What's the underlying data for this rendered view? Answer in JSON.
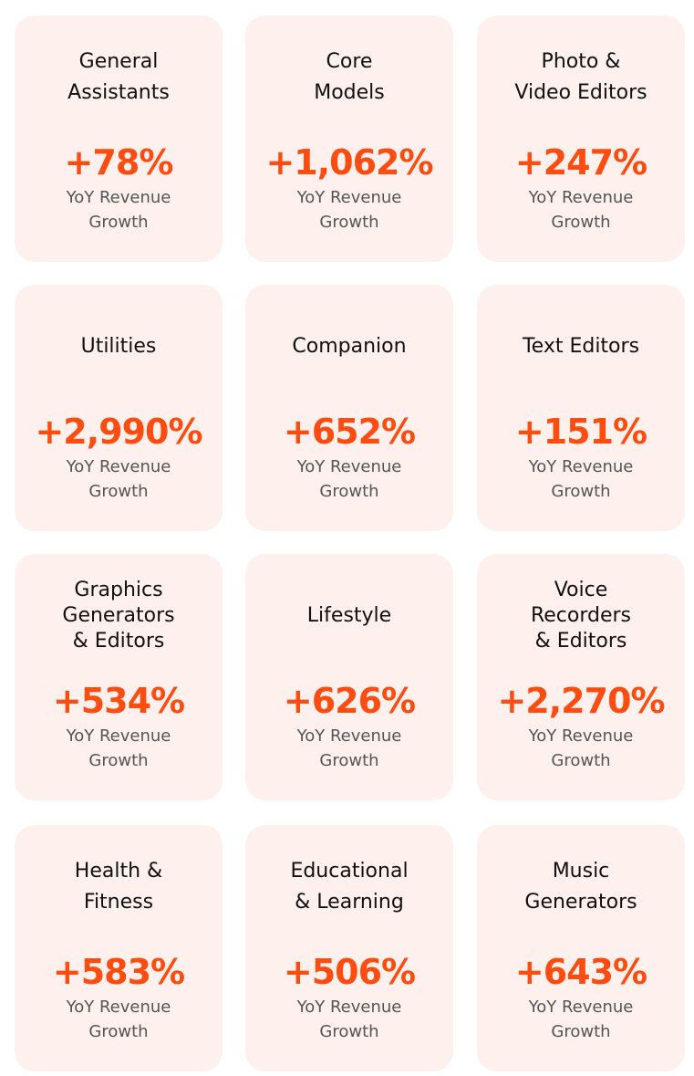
{
  "cards": [
    {
      "title": [
        "General",
        "Assistants"
      ],
      "value": "+78%",
      "label": [
        "YoY Revenue",
        "Growth"
      ]
    },
    {
      "title": [
        "Core",
        "Models"
      ],
      "value": "+1,062%",
      "label": [
        "YoY Revenue",
        "Growth"
      ]
    },
    {
      "title": [
        "Photo &",
        "Video Editors"
      ],
      "value": "+247%",
      "label": [
        "YoY Revenue",
        "Growth"
      ]
    },
    {
      "title": [
        "Utilities"
      ],
      "value": "+2,990%",
      "label": [
        "YoY Revenue",
        "Growth"
      ]
    },
    {
      "title": [
        "Companion"
      ],
      "value": "+652%",
      "label": [
        "YoY Revenue",
        "Growth"
      ]
    },
    {
      "title": [
        "Text Editors"
      ],
      "value": "+151%",
      "label": [
        "YoY Revenue",
        "Growth"
      ]
    },
    {
      "title": [
        "Graphics",
        "Generators",
        "& Editors"
      ],
      "value": "+534%",
      "label": [
        "YoY Revenue",
        "Growth"
      ]
    },
    {
      "title": [
        "Lifestyle"
      ],
      "value": "+626%",
      "label": [
        "YoY Revenue",
        "Growth"
      ]
    },
    {
      "title": [
        "Voice",
        "Recorders",
        "& Editors"
      ],
      "value": "+2,270%",
      "label": [
        "YoY Revenue",
        "Growth"
      ]
    },
    {
      "title": [
        "Health &",
        "Fitness"
      ],
      "value": "+583%",
      "label": [
        "YoY Revenue",
        "Growth"
      ]
    },
    {
      "title": [
        "Educational",
        "& Learning"
      ],
      "value": "+506%",
      "label": [
        "YoY Revenue",
        "Growth"
      ]
    },
    {
      "title": [
        "Music",
        "Generators"
      ],
      "value": "+643%",
      "label": [
        "YoY Revenue",
        "Growth"
      ]
    }
  ]
}
